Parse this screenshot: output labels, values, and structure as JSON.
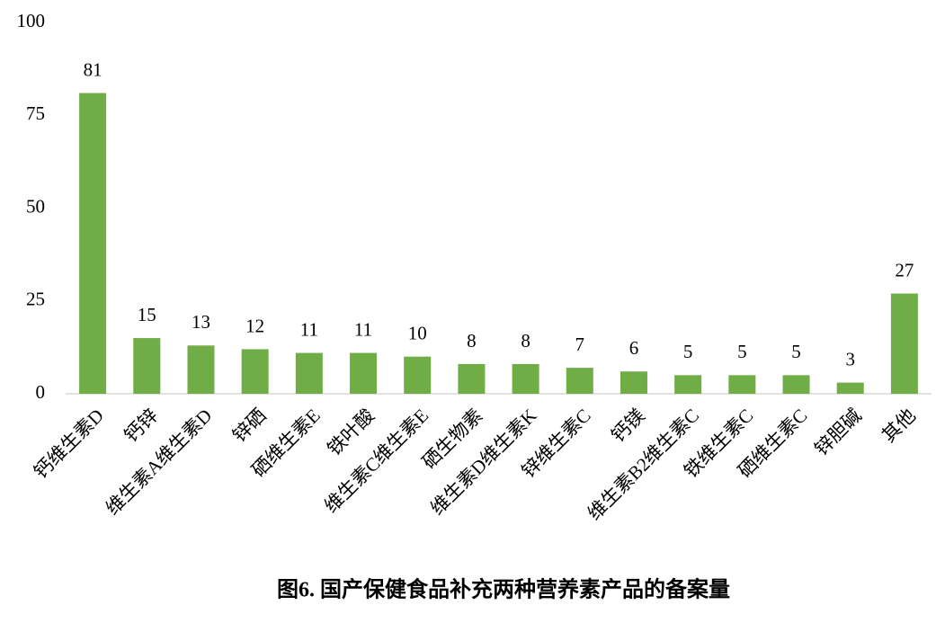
{
  "chart_data": {
    "type": "bar",
    "title": "图6. 国产保健食品补充两种营养素产品的备案量",
    "categories": [
      "钙维生素D",
      "钙锌",
      "维生素A维生素D",
      "锌硒",
      "硒维生素E",
      "铁叶酸",
      "维生素C维生素E",
      "硒生物素",
      "维生素D维生素K",
      "锌维生素C",
      "钙镁",
      "维生素B2维生素C",
      "铁维生素C",
      "硒维生素C",
      "锌胆碱",
      "其他"
    ],
    "values": [
      81,
      15,
      13,
      12,
      11,
      11,
      10,
      8,
      8,
      7,
      6,
      5,
      5,
      5,
      3,
      27
    ],
    "color": "#70ad47",
    "ylim": [
      0,
      100
    ],
    "yticks": [
      0,
      25,
      50,
      75,
      100
    ],
    "grid": false
  }
}
